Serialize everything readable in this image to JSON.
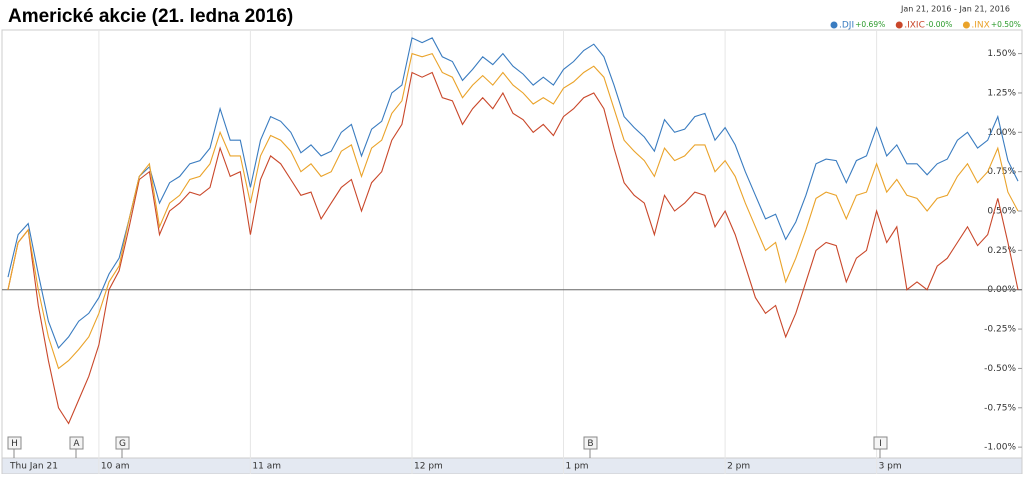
{
  "chart_data": {
    "type": "line",
    "title": "Americké akcie (21. ledna 2016)",
    "date_range": "Jan 21, 2016 - Jan 21, 2016",
    "categories": [
      "Thu Jan 21",
      null,
      null,
      null,
      null,
      null,
      null,
      null,
      null,
      "10 am",
      null,
      null,
      null,
      null,
      null,
      null,
      null,
      null,
      null,
      null,
      null,
      null,
      null,
      null,
      "11 am",
      null,
      null,
      null,
      null,
      null,
      null,
      null,
      null,
      null,
      null,
      null,
      null,
      null,
      null,
      null,
      "12 pm",
      null,
      null,
      null,
      null,
      null,
      null,
      null,
      null,
      null,
      null,
      null,
      null,
      null,
      null,
      "1 pm",
      null,
      null,
      null,
      null,
      null,
      null,
      null,
      null,
      null,
      null,
      null,
      null,
      null,
      null,
      null,
      "2 pm",
      null,
      null,
      null,
      null,
      null,
      null,
      null,
      null,
      null,
      null,
      null,
      null,
      null,
      null,
      "3 pm",
      null,
      null,
      null,
      null,
      null,
      null,
      null,
      null,
      null,
      null,
      null,
      null,
      null,
      null
    ],
    "series": [
      {
        "name": ".DJI",
        "change": "+0.69%",
        "color": "#3a7cc0",
        "values": [
          0.08,
          0.35,
          0.42,
          0.1,
          -0.2,
          -0.37,
          -0.3,
          -0.2,
          -0.15,
          -0.05,
          0.1,
          0.2,
          0.45,
          0.72,
          0.78,
          0.55,
          0.68,
          0.72,
          0.8,
          0.82,
          0.9,
          1.15,
          0.95,
          0.95,
          0.65,
          0.95,
          1.1,
          1.07,
          1.0,
          0.87,
          0.92,
          0.85,
          0.88,
          1.0,
          1.05,
          0.85,
          1.02,
          1.07,
          1.25,
          1.3,
          1.6,
          1.57,
          1.6,
          1.48,
          1.45,
          1.33,
          1.4,
          1.48,
          1.43,
          1.5,
          1.42,
          1.37,
          1.3,
          1.35,
          1.3,
          1.4,
          1.45,
          1.52,
          1.56,
          1.48,
          1.3,
          1.1,
          1.03,
          0.97,
          0.88,
          1.08,
          1.0,
          1.02,
          1.1,
          1.12,
          0.95,
          1.03,
          0.92,
          0.75,
          0.6,
          0.45,
          0.48,
          0.32,
          0.43,
          0.6,
          0.8,
          0.83,
          0.82,
          0.68,
          0.82,
          0.85,
          1.03,
          0.85,
          0.92,
          0.8,
          0.8,
          0.73,
          0.8,
          0.83,
          0.95,
          1.0,
          0.9,
          0.95,
          1.1,
          0.82,
          0.69
        ]
      },
      {
        "name": ".IXIC",
        "change": "-0.00%",
        "color": "#c9472a",
        "values": [
          0.0,
          0.3,
          0.38,
          -0.1,
          -0.45,
          -0.75,
          -0.85,
          -0.7,
          -0.55,
          -0.35,
          0.0,
          0.12,
          0.4,
          0.7,
          0.75,
          0.35,
          0.5,
          0.55,
          0.62,
          0.6,
          0.65,
          0.9,
          0.72,
          0.75,
          0.35,
          0.7,
          0.85,
          0.8,
          0.7,
          0.6,
          0.62,
          0.45,
          0.55,
          0.65,
          0.7,
          0.5,
          0.68,
          0.75,
          0.95,
          1.05,
          1.38,
          1.35,
          1.38,
          1.22,
          1.2,
          1.05,
          1.15,
          1.22,
          1.15,
          1.25,
          1.12,
          1.08,
          1.0,
          1.05,
          0.98,
          1.1,
          1.15,
          1.22,
          1.25,
          1.15,
          0.9,
          0.68,
          0.6,
          0.55,
          0.35,
          0.6,
          0.5,
          0.55,
          0.62,
          0.6,
          0.4,
          0.5,
          0.35,
          0.15,
          -0.05,
          -0.15,
          -0.1,
          -0.3,
          -0.15,
          0.05,
          0.25,
          0.3,
          0.28,
          0.05,
          0.2,
          0.25,
          0.5,
          0.3,
          0.4,
          0.0,
          0.05,
          0.0,
          0.15,
          0.2,
          0.3,
          0.4,
          0.28,
          0.35,
          0.58,
          0.3,
          0.0
        ]
      },
      {
        "name": ".INX",
        "change": "+0.50%",
        "color": "#eaa32a",
        "values": [
          0.0,
          0.3,
          0.38,
          0.0,
          -0.3,
          -0.5,
          -0.45,
          -0.38,
          -0.3,
          -0.15,
          0.05,
          0.15,
          0.45,
          0.72,
          0.8,
          0.4,
          0.55,
          0.6,
          0.7,
          0.72,
          0.8,
          1.0,
          0.85,
          0.85,
          0.55,
          0.85,
          0.98,
          0.95,
          0.88,
          0.75,
          0.8,
          0.72,
          0.75,
          0.88,
          0.92,
          0.72,
          0.9,
          0.95,
          1.12,
          1.2,
          1.5,
          1.48,
          1.5,
          1.38,
          1.35,
          1.22,
          1.3,
          1.36,
          1.3,
          1.38,
          1.3,
          1.25,
          1.18,
          1.22,
          1.18,
          1.28,
          1.32,
          1.38,
          1.42,
          1.35,
          1.15,
          0.95,
          0.88,
          0.82,
          0.72,
          0.9,
          0.82,
          0.85,
          0.92,
          0.92,
          0.75,
          0.82,
          0.72,
          0.55,
          0.4,
          0.25,
          0.3,
          0.05,
          0.2,
          0.38,
          0.58,
          0.62,
          0.6,
          0.45,
          0.6,
          0.62,
          0.8,
          0.62,
          0.7,
          0.6,
          0.58,
          0.5,
          0.58,
          0.6,
          0.72,
          0.8,
          0.68,
          0.75,
          0.9,
          0.62,
          0.5
        ]
      }
    ],
    "ylim": [
      -1.05,
      1.65
    ],
    "yticks": [
      {
        "value": 1.5,
        "label": "1.50%"
      },
      {
        "value": 1.25,
        "label": "1.25%"
      },
      {
        "value": 1,
        "label": "1.00%"
      },
      {
        "value": 0.75,
        "label": "0.75%"
      },
      {
        "value": 0.5,
        "label": "0.50%"
      },
      {
        "value": 0.25,
        "label": "0.25%"
      },
      {
        "value": 0,
        "label": "0.00%"
      },
      {
        "value": -0.25,
        "label": "-0.25%"
      },
      {
        "value": -0.5,
        "label": "-0.50%"
      },
      {
        "value": -0.75,
        "label": "-0.75%"
      },
      {
        "value": -1,
        "label": "-1.00%"
      }
    ],
    "events": [
      "H",
      "A",
      "G",
      "B",
      "I"
    ],
    "change_color": "#2a9a2a"
  }
}
